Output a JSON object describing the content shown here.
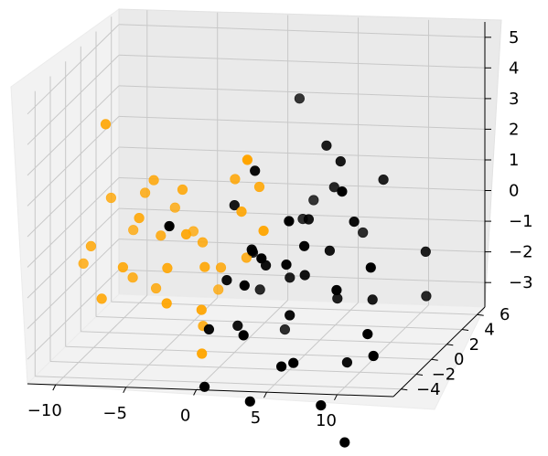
{
  "chart_data": {
    "type": "scatter",
    "projection": "3d",
    "grid": true,
    "axes": {
      "x": {
        "ticks": [
          -10,
          -5,
          0,
          5,
          10
        ],
        "tick_labels": [
          "−10",
          "−5",
          "0",
          "5",
          "10"
        ],
        "range": [
          -12,
          14
        ]
      },
      "y": {
        "ticks": [
          -4,
          -2,
          0,
          2,
          4,
          6
        ],
        "tick_labels": [
          "−4",
          "−2",
          "0",
          "2",
          "4",
          "6"
        ],
        "range": [
          -5,
          7
        ]
      },
      "z": {
        "ticks": [
          -3,
          -2,
          -1,
          0,
          1,
          2,
          3,
          4,
          5
        ],
        "tick_labels": [
          "−3",
          "−2",
          "−1",
          "0",
          "1",
          "2",
          "3",
          "4",
          "5"
        ],
        "range": [
          -3.8,
          5.5
        ]
      }
    },
    "series": [
      {
        "color": "#ffa500",
        "points": [
          [
            -8.5,
            -1.2,
            3.8
          ],
          [
            -6.0,
            0.5,
            1.6
          ],
          [
            -9.2,
            0.8,
            0.9
          ],
          [
            -7.0,
            1.2,
            1.0
          ],
          [
            -6.5,
            -0.5,
            0.6
          ],
          [
            -3.8,
            0.2,
            1.4
          ],
          [
            -3.0,
            -0.8,
            0.2
          ],
          [
            -10.2,
            0.0,
            -0.5
          ],
          [
            -8.0,
            1.5,
            -0.3
          ],
          [
            -5.5,
            0.5,
            -0.2
          ],
          [
            -4.0,
            2.0,
            -0.4
          ],
          [
            -2.8,
            1.0,
            -0.5
          ],
          [
            -4.5,
            -0.5,
            -1.0
          ],
          [
            -2.0,
            -0.2,
            -1.0
          ],
          [
            -1.5,
            1.0,
            -1.3
          ],
          [
            -7.5,
            0.5,
            -1.6
          ],
          [
            -11.0,
            0.5,
            -1.2
          ],
          [
            -9.0,
            -0.8,
            -2.0
          ],
          [
            -6.0,
            0.8,
            -2.0
          ],
          [
            -1.8,
            -1.0,
            -2.2
          ],
          [
            -2.5,
            2.5,
            -2.4
          ],
          [
            -4.0,
            -1.5,
            -1.9
          ],
          [
            -2.5,
            0.5,
            -3.1
          ],
          [
            -1.5,
            -1.5,
            -3.5
          ],
          [
            0.5,
            0.0,
            0.8
          ],
          [
            -0.5,
            1.0,
            1.6
          ],
          [
            1.5,
            0.5,
            1.5
          ],
          [
            2.0,
            -2.0,
            3.0
          ],
          [
            2.5,
            -0.8,
            0.4
          ],
          [
            0.2,
            1.2,
            -1.0
          ],
          [
            -7.6,
            -0.6,
            -1.0
          ],
          [
            -5.2,
            1.8,
            0.4
          ]
        ]
      },
      {
        "color": "#000000",
        "points": [
          [
            -3.0,
            -3.0,
            1.0
          ],
          [
            0.0,
            0.0,
            1.0
          ],
          [
            2.0,
            -1.0,
            2.4
          ],
          [
            7.0,
            1.0,
            2.3
          ],
          [
            9.0,
            -2.5,
            2.2
          ],
          [
            9.5,
            2.0,
            1.5
          ],
          [
            6.0,
            2.0,
            1.2
          ],
          [
            8.5,
            0.0,
            0.6
          ],
          [
            5.0,
            0.5,
            0.5
          ],
          [
            4.0,
            3.0,
            0.5
          ],
          [
            3.5,
            2.5,
            0.0
          ],
          [
            5.5,
            -1.0,
            0.0
          ],
          [
            7.5,
            3.0,
            -0.5
          ],
          [
            3.0,
            -2.0,
            -0.2
          ],
          [
            4.5,
            -1.5,
            -0.5
          ],
          [
            12.5,
            2.0,
            -0.8
          ],
          [
            10.5,
            -1.5,
            -0.5
          ],
          [
            6.5,
            0.5,
            -0.5
          ],
          [
            1.5,
            -0.5,
            -0.3
          ],
          [
            1.0,
            0.5,
            -0.6
          ],
          [
            0.5,
            1.5,
            -0.9
          ],
          [
            2.5,
            -0.5,
            -0.8
          ],
          [
            0.0,
            -1.0,
            -1.2
          ],
          [
            1.8,
            -2.0,
            -1.1
          ],
          [
            5.0,
            0.0,
            -1.2
          ],
          [
            7.8,
            -1.0,
            -1.4
          ],
          [
            3.5,
            0.8,
            -1.5
          ],
          [
            1.0,
            1.5,
            -2.1
          ],
          [
            4.2,
            -0.5,
            -2.4
          ],
          [
            6.5,
            1.5,
            -2.3
          ],
          [
            2.0,
            -2.5,
            -2.6
          ],
          [
            9.0,
            1.5,
            -2.3
          ],
          [
            10.0,
            -1.0,
            -2.8
          ],
          [
            12.0,
            3.0,
            -2.5
          ],
          [
            0.5,
            -0.5,
            -2.8
          ],
          [
            -1.0,
            -1.5,
            -2.7
          ],
          [
            2.5,
            2.0,
            -3.5
          ],
          [
            5.0,
            -1.5,
            -3.7
          ],
          [
            8.0,
            0.0,
            -4.0
          ],
          [
            7.5,
            -2.5,
            -4.8
          ],
          [
            10.0,
            -4.0,
            -5.6
          ],
          [
            11.5,
            -3.0,
            -3.0
          ],
          [
            3.0,
            -3.5,
            -4.5
          ],
          [
            -0.5,
            -3.0,
            -4.2
          ],
          [
            5.5,
            -4.0,
            -3.2
          ],
          [
            6.0,
            1.0,
            2.8
          ],
          [
            3.0,
            3.0,
            3.8
          ],
          [
            5.5,
            -3.0,
            1.3
          ]
        ]
      }
    ]
  }
}
